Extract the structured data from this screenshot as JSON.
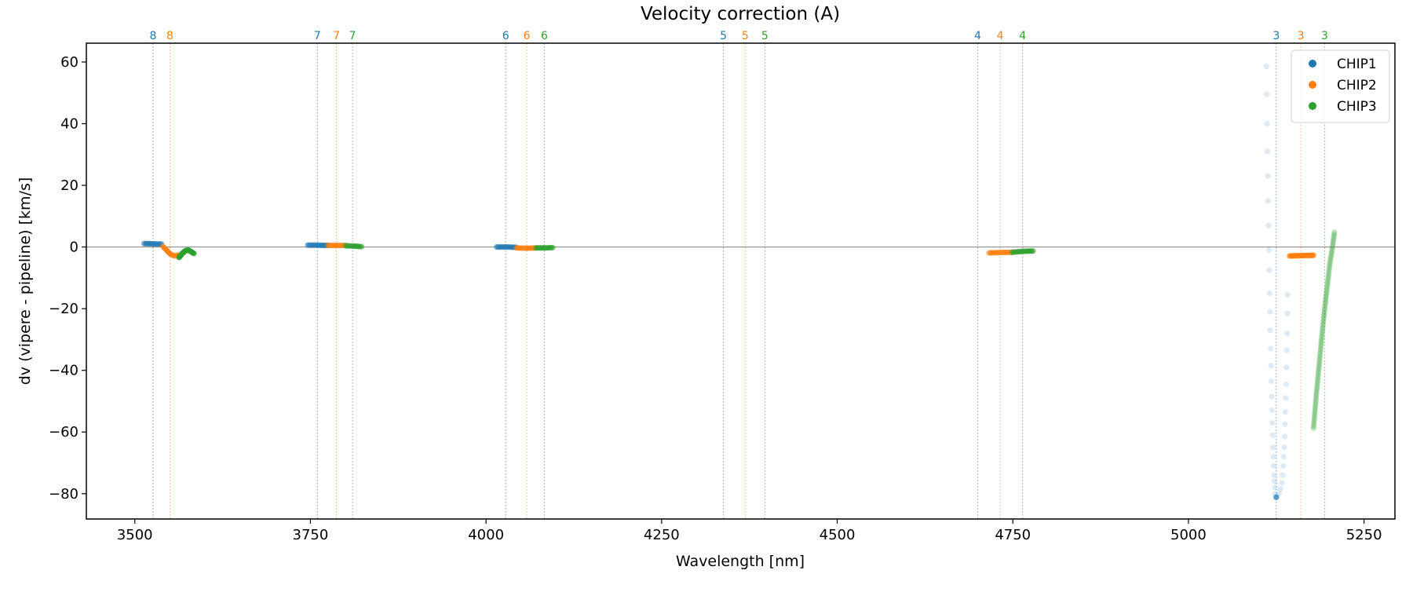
{
  "chart_data": {
    "type": "scatter",
    "title": "Velocity correction (A)",
    "xlabel": "Wavelength [nm]",
    "ylabel": "dv (vipere - pipeline) [km/s]",
    "xlim": [
      3431,
      5294
    ],
    "ylim": [
      -88.2,
      66.1
    ],
    "xticks": [
      3500,
      3750,
      4000,
      4250,
      4500,
      4750,
      5000,
      5250
    ],
    "yticks": [
      -80,
      -60,
      -40,
      -20,
      0,
      20,
      40,
      60
    ],
    "hline": 0,
    "grid": false,
    "legend_position": "top-right",
    "colors": {
      "CHIP1": "#1f77b4",
      "CHIP2": "#ff7f0e",
      "CHIP3": "#2ca02c"
    },
    "legend": [
      "CHIP1",
      "CHIP2",
      "CHIP3"
    ],
    "order_lines": [
      {
        "order": "8",
        "chip": "CHIP1",
        "x": 3526
      },
      {
        "order": "8",
        "chip": "CHIP2",
        "x": 3550
      },
      {
        "order": "7",
        "chip": "CHIP1",
        "x": 3760
      },
      {
        "order": "7",
        "chip": "CHIP2",
        "x": 3787
      },
      {
        "order": "7",
        "chip": "CHIP3",
        "x": 3810
      },
      {
        "order": "6",
        "chip": "CHIP1",
        "x": 4028
      },
      {
        "order": "6",
        "chip": "CHIP2",
        "x": 4058
      },
      {
        "order": "6",
        "chip": "CHIP3",
        "x": 4083
      },
      {
        "order": "5",
        "chip": "CHIP1",
        "x": 4338
      },
      {
        "order": "5",
        "chip": "CHIP2",
        "x": 4369
      },
      {
        "order": "5",
        "chip": "CHIP3",
        "x": 4397
      },
      {
        "order": "4",
        "chip": "CHIP1",
        "x": 4700
      },
      {
        "order": "4",
        "chip": "CHIP2",
        "x": 4732
      },
      {
        "order": "4",
        "chip": "CHIP3",
        "x": 4764
      },
      {
        "order": "3",
        "chip": "CHIP1",
        "x": 5125
      },
      {
        "order": "3",
        "chip": "CHIP2",
        "x": 5160
      },
      {
        "order": "3",
        "chip": "CHIP3",
        "x": 5194
      }
    ],
    "series": [
      {
        "name": "CHIP1",
        "order": "8",
        "alpha": 0.5,
        "dense": true,
        "points": [
          [
            3513,
            1.1
          ],
          [
            3520,
            1.1
          ],
          [
            3528,
            1.0
          ],
          [
            3538,
            1.0
          ]
        ]
      },
      {
        "name": "CHIP2",
        "order": "8",
        "alpha": 0.45,
        "dense": true,
        "points": [
          [
            3540,
            0.2
          ],
          [
            3545,
            -1.0
          ],
          [
            3550,
            -2.2
          ],
          [
            3556,
            -2.9
          ],
          [
            3564,
            -2.6
          ]
        ]
      },
      {
        "name": "CHIP3",
        "order": "8",
        "alpha": 0.8,
        "dense": true,
        "points": [
          [
            3563,
            -3.4
          ],
          [
            3567,
            -2.2
          ],
          [
            3572,
            -1.2
          ],
          [
            3576,
            -1.0
          ],
          [
            3580,
            -1.5
          ],
          [
            3584,
            -2.1
          ]
        ]
      },
      {
        "name": "CHIP1",
        "order": "7",
        "alpha": 0.5,
        "dense": true,
        "points": [
          [
            3746,
            0.6
          ],
          [
            3760,
            0.6
          ],
          [
            3775,
            0.5
          ]
        ]
      },
      {
        "name": "CHIP2",
        "order": "7",
        "alpha": 0.5,
        "dense": true,
        "points": [
          [
            3775,
            0.5
          ],
          [
            3788,
            0.5
          ],
          [
            3800,
            0.5
          ]
        ]
      },
      {
        "name": "CHIP3",
        "order": "7",
        "alpha": 0.5,
        "dense": true,
        "points": [
          [
            3800,
            0.4
          ],
          [
            3812,
            0.3
          ],
          [
            3823,
            0.1
          ]
        ]
      },
      {
        "name": "CHIP1",
        "order": "6",
        "alpha": 0.5,
        "dense": true,
        "points": [
          [
            4015,
            0.0
          ],
          [
            4030,
            0.0
          ],
          [
            4043,
            -0.1
          ]
        ]
      },
      {
        "name": "CHIP2",
        "order": "6",
        "alpha": 0.5,
        "dense": true,
        "points": [
          [
            4043,
            -0.3
          ],
          [
            4058,
            -0.4
          ],
          [
            4071,
            -0.3
          ]
        ]
      },
      {
        "name": "CHIP3",
        "order": "6",
        "alpha": 0.5,
        "dense": true,
        "points": [
          [
            4071,
            -0.3
          ],
          [
            4084,
            -0.3
          ],
          [
            4095,
            -0.2
          ]
        ]
      },
      {
        "name": "CHIP2",
        "order": "4",
        "alpha": 0.5,
        "dense": true,
        "points": [
          [
            4716,
            -1.9
          ],
          [
            4732,
            -1.8
          ],
          [
            4749,
            -1.7
          ]
        ]
      },
      {
        "name": "CHIP3",
        "order": "4",
        "alpha": 0.5,
        "dense": true,
        "points": [
          [
            4749,
            -1.7
          ],
          [
            4765,
            -1.4
          ],
          [
            4779,
            -1.3
          ]
        ]
      },
      {
        "name": "CHIP1",
        "order": "3",
        "alpha": 0.15,
        "dense": false,
        "points": [
          [
            5111,
            58.6
          ],
          [
            5111.5,
            49.5
          ],
          [
            5112,
            40
          ],
          [
            5112.5,
            31
          ],
          [
            5113,
            23
          ],
          [
            5113.5,
            15
          ],
          [
            5114,
            7
          ],
          [
            5114.5,
            -1
          ],
          [
            5115,
            -7.5
          ],
          [
            5115.5,
            -15
          ],
          [
            5116,
            -21
          ],
          [
            5116.5,
            -27
          ],
          [
            5117,
            -33
          ],
          [
            5117.5,
            -38.5
          ],
          [
            5118,
            -43.5
          ],
          [
            5118.5,
            -48.5
          ],
          [
            5119,
            -53
          ],
          [
            5119.5,
            -57
          ],
          [
            5120,
            -61
          ],
          [
            5120.5,
            -65
          ],
          [
            5121,
            -68
          ],
          [
            5121.5,
            -71
          ],
          [
            5122,
            -74
          ],
          [
            5122.5,
            -76
          ],
          [
            5123,
            -78
          ],
          [
            5123.5,
            -80
          ],
          [
            5124,
            -81
          ],
          [
            5141,
            -15.5
          ],
          [
            5141,
            -21.5
          ],
          [
            5140.5,
            -28
          ],
          [
            5140,
            -33.5
          ],
          [
            5139.5,
            -39
          ],
          [
            5139,
            -44.5
          ],
          [
            5138.5,
            -49
          ],
          [
            5138,
            -53.5
          ],
          [
            5137.5,
            -57.5
          ],
          [
            5137,
            -61.5
          ],
          [
            5136.5,
            -65
          ],
          [
            5136,
            -68
          ],
          [
            5135,
            -71
          ],
          [
            5134,
            -74
          ],
          [
            5133,
            -76.5
          ],
          [
            5131,
            -78.5
          ],
          [
            5129,
            -80
          ],
          [
            5126,
            -81
          ]
        ]
      },
      {
        "name": "CHIP1",
        "order": "3",
        "alpha": 0.6,
        "dense": false,
        "points": [
          [
            5125,
            -81.2
          ]
        ]
      },
      {
        "name": "CHIP2",
        "order": "3",
        "alpha": 0.7,
        "dense": true,
        "points": [
          [
            5144,
            -2.9
          ],
          [
            5160,
            -2.8
          ],
          [
            5178,
            -2.7
          ]
        ]
      },
      {
        "name": "CHIP3",
        "order": "3",
        "alpha": 0.15,
        "dense": true,
        "points": [
          [
            5178,
            -59
          ],
          [
            5182,
            -48
          ],
          [
            5187,
            -36
          ],
          [
            5192,
            -24
          ],
          [
            5197,
            -14
          ],
          [
            5201,
            -6
          ],
          [
            5205,
            0
          ],
          [
            5208,
            5
          ]
        ]
      }
    ]
  }
}
